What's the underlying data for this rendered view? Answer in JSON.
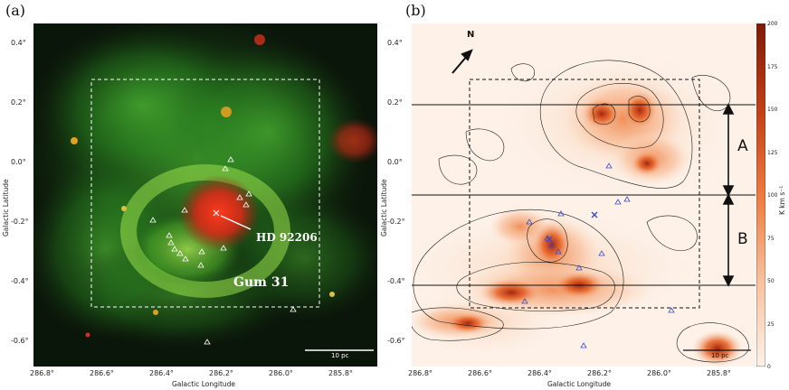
{
  "panel_a": {
    "label": "(a)",
    "star_label": "HD 92206",
    "region_label": "Gum 31",
    "scale_label": "10 pc",
    "x_ticks": [
      "286.8°",
      "286.6°",
      "286.4°",
      "286.2°",
      "286.0°",
      "285.8°"
    ],
    "y_ticks": [
      "0.4°",
      "0.2°",
      "0.0°",
      "-0.2°",
      "-0.4°",
      "-0.6°"
    ],
    "xlabel": "Galactic Longitude",
    "ylabel": "Galactic Latitude",
    "colors": {
      "green": "#3fae2a",
      "red": "#d0281a",
      "bg": "#0b160a"
    }
  },
  "panel_b": {
    "label": "(b)",
    "north_label": "N",
    "region_A": "A",
    "region_B": "B",
    "scale_label": "10 pc",
    "x_ticks": [
      "286.8°",
      "286.6°",
      "286.4°",
      "286.2°",
      "286.0°",
      "285.8°"
    ],
    "y_ticks": [
      "0.4°",
      "0.2°",
      "0.0°",
      "-0.2°",
      "-0.4°",
      "-0.6°"
    ],
    "xlabel": "Galactic Longitude",
    "ylabel": "Galactic Latitude",
    "colorbar_ticks": [
      "200",
      "175",
      "150",
      "125",
      "100",
      "75",
      "50",
      "25",
      "0"
    ],
    "colorbar_label": "K km s⁻¹",
    "colors": {
      "high": "#7f1a06",
      "mid": "#e8692e",
      "low": "#fdf1e8"
    }
  }
}
